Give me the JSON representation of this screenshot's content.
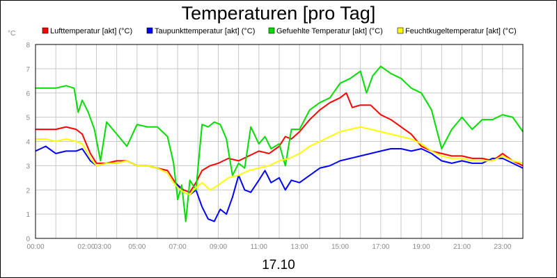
{
  "chart_data": {
    "type": "line",
    "title": "Temperaturen [pro Tag]",
    "unit_label": "°C",
    "date_label": "17.10",
    "ylim": [
      0,
      8
    ],
    "y_ticks": [
      "0",
      "1",
      "2",
      "3",
      "4",
      "5",
      "6",
      "7",
      "8"
    ],
    "xlim": [
      0,
      24
    ],
    "x_ticks": [
      {
        "x": 0,
        "label": "00:00"
      },
      {
        "x": 2.5,
        "label": "02:00"
      },
      {
        "x": 3.3,
        "label": "03:00"
      },
      {
        "x": 5,
        "label": "05:00"
      },
      {
        "x": 7,
        "label": "07:00"
      },
      {
        "x": 9,
        "label": "09:00"
      },
      {
        "x": 11,
        "label": "11:00"
      },
      {
        "x": 13,
        "label": "13:00"
      },
      {
        "x": 15,
        "label": "15:00"
      },
      {
        "x": 17,
        "label": "17:00"
      },
      {
        "x": 19,
        "label": "19:00"
      },
      {
        "x": 21,
        "label": "21:00"
      },
      {
        "x": 23,
        "label": "23:00"
      }
    ],
    "grid": true,
    "legend_position": "top",
    "series": [
      {
        "name": "Lufttemperatur [akt] (°C)",
        "color": "#ff0000",
        "x": [
          0,
          0.5,
          1,
          1.5,
          2,
          2.3,
          2.7,
          3,
          3.5,
          4,
          4.5,
          5,
          5.5,
          6,
          6.5,
          6.8,
          7,
          7.3,
          7.6,
          7.9,
          8.2,
          8.6,
          9,
          9.5,
          10,
          10.5,
          11,
          11.5,
          12,
          12.3,
          12.6,
          13,
          13.5,
          14,
          14.5,
          15,
          15.3,
          15.6,
          16,
          16.5,
          17,
          17.5,
          18,
          18.5,
          19,
          19.5,
          20,
          20.5,
          21,
          21.5,
          22,
          22.5,
          23,
          23.5,
          24
        ],
        "values": [
          4.5,
          4.5,
          4.5,
          4.6,
          4.5,
          4.3,
          3.5,
          3.1,
          3.1,
          3.2,
          3.2,
          3.0,
          3.0,
          2.9,
          2.8,
          2.4,
          2.2,
          2.0,
          1.9,
          2.3,
          2.8,
          3.0,
          3.1,
          3.3,
          3.2,
          3.4,
          3.6,
          3.5,
          3.8,
          4.2,
          4.1,
          4.4,
          4.9,
          5.3,
          5.6,
          5.8,
          6.0,
          5.4,
          5.5,
          5.5,
          5.1,
          4.9,
          4.6,
          4.3,
          3.8,
          3.6,
          3.5,
          3.4,
          3.4,
          3.3,
          3.3,
          3.2,
          3.5,
          3.2,
          3.0
        ]
      },
      {
        "name": "Taupunkttemperatur [akt] (°C)",
        "color": "#0000ff",
        "x": [
          0,
          0.5,
          1,
          1.5,
          2,
          2.3,
          2.7,
          3,
          3.5,
          4,
          4.5,
          5,
          5.5,
          6,
          6.5,
          6.8,
          7,
          7.3,
          7.6,
          7.9,
          8.2,
          8.5,
          8.8,
          9.1,
          9.4,
          9.7,
          10,
          10.3,
          10.6,
          11,
          11.3,
          11.6,
          12,
          12.3,
          12.6,
          13,
          13.5,
          14,
          14.5,
          15,
          15.5,
          16,
          16.5,
          17,
          17.5,
          18,
          18.5,
          19,
          19.5,
          20,
          20.5,
          21,
          21.5,
          22,
          22.5,
          23,
          23.5,
          24
        ],
        "values": [
          3.6,
          3.8,
          3.5,
          3.6,
          3.6,
          3.7,
          3.2,
          3.0,
          3.1,
          3.1,
          3.2,
          3.0,
          3.0,
          2.9,
          2.7,
          2.3,
          2.2,
          1.9,
          1.8,
          2.0,
          1.3,
          0.8,
          0.7,
          1.2,
          1.0,
          1.7,
          2.6,
          2.0,
          1.9,
          2.4,
          2.8,
          2.3,
          2.5,
          2.0,
          2.4,
          2.3,
          2.6,
          2.9,
          3.0,
          3.2,
          3.3,
          3.4,
          3.5,
          3.6,
          3.7,
          3.7,
          3.6,
          3.7,
          3.5,
          3.2,
          3.1,
          3.2,
          3.1,
          3.1,
          3.3,
          3.3,
          3.1,
          2.9
        ]
      },
      {
        "name": "Gefuehlte Temperatur [akt] (°C)",
        "color": "#00dd00",
        "x": [
          0,
          0.5,
          1,
          1.5,
          1.9,
          2.1,
          2.3,
          2.6,
          2.9,
          3.2,
          3.5,
          4,
          4.5,
          5,
          5.5,
          6,
          6.5,
          6.8,
          7,
          7.2,
          7.4,
          7.6,
          7.9,
          8.2,
          8.5,
          8.8,
          9.1,
          9.4,
          9.7,
          10,
          10.3,
          10.6,
          11,
          11.3,
          11.6,
          12,
          12.3,
          12.6,
          13,
          13.5,
          14,
          14.5,
          15,
          15.5,
          16,
          16.3,
          16.6,
          17,
          17.5,
          18,
          18.5,
          19,
          19.5,
          20,
          20.5,
          21,
          21.5,
          22,
          22.5,
          23,
          23.5,
          24
        ],
        "values": [
          6.2,
          6.2,
          6.2,
          6.3,
          6.2,
          5.2,
          5.7,
          5.2,
          4.5,
          3.2,
          4.8,
          4.3,
          3.8,
          4.7,
          4.6,
          4.6,
          4.2,
          3.1,
          1.6,
          2.2,
          0.7,
          2.4,
          2.0,
          4.7,
          4.6,
          4.8,
          4.7,
          4.1,
          2.6,
          3.1,
          2.9,
          4.6,
          3.9,
          4.2,
          3.7,
          3.9,
          3.0,
          4.5,
          4.5,
          5.3,
          5.6,
          5.8,
          6.4,
          6.6,
          6.9,
          6.0,
          6.7,
          7.1,
          6.8,
          6.6,
          6.2,
          6.0,
          5.3,
          3.7,
          4.5,
          5.0,
          4.5,
          4.9,
          4.9,
          5.1,
          5.0,
          4.4
        ]
      },
      {
        "name": "Feuchtkugeltemperatur [akt] (°C)",
        "color": "#ffff00",
        "x": [
          0,
          0.5,
          1,
          1.5,
          2,
          2.3,
          2.7,
          3,
          3.5,
          4,
          4.5,
          5,
          5.5,
          6,
          6.5,
          6.8,
          7,
          7.3,
          7.6,
          7.9,
          8.2,
          8.6,
          9,
          9.5,
          10,
          10.5,
          11,
          11.5,
          12,
          12.5,
          13,
          13.5,
          14,
          14.5,
          15,
          15.5,
          16,
          16.5,
          17,
          17.5,
          18,
          18.5,
          19,
          19.5,
          20,
          20.5,
          21,
          21.5,
          22,
          22.5,
          23,
          23.5,
          24
        ],
        "values": [
          4.1,
          4.1,
          4.0,
          4.1,
          4.0,
          3.9,
          3.3,
          3.0,
          3.1,
          3.1,
          3.2,
          3.0,
          3.0,
          2.9,
          2.7,
          2.3,
          2.1,
          1.9,
          1.8,
          2.1,
          2.3,
          2.0,
          2.2,
          2.5,
          2.6,
          2.8,
          2.9,
          3.0,
          3.2,
          3.3,
          3.5,
          3.8,
          4.0,
          4.2,
          4.4,
          4.5,
          4.6,
          4.5,
          4.4,
          4.3,
          4.2,
          4.1,
          3.9,
          3.6,
          3.4,
          3.3,
          3.3,
          3.2,
          3.2,
          3.2,
          3.4,
          3.2,
          3.1
        ]
      }
    ]
  }
}
